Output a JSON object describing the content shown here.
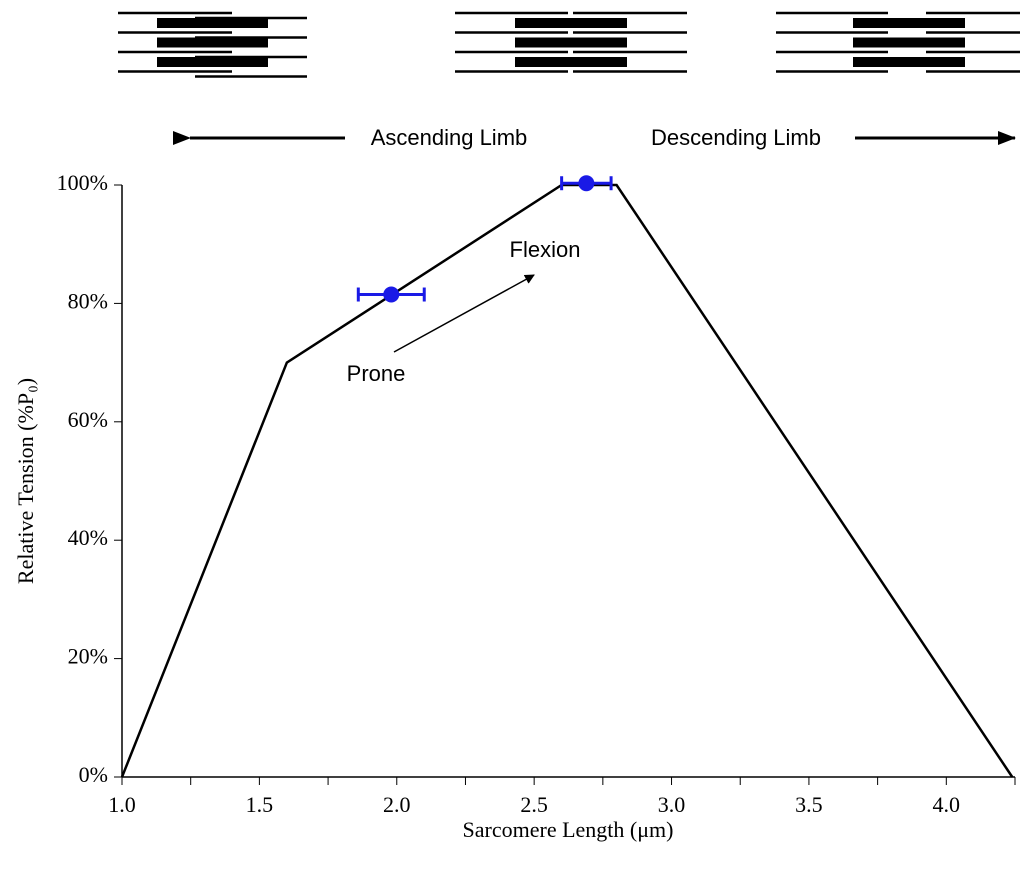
{
  "chart_data": {
    "type": "line",
    "xlabel": "Sarcomere Length (μm)",
    "ylabel": "Relative Tension (%P₀)",
    "xlim": [
      1.0,
      4.25
    ],
    "ylim": [
      0,
      100
    ],
    "xticks": [
      {
        "value": 1,
        "label": "1.0"
      },
      {
        "value": 1.5,
        "label": "1.5"
      },
      {
        "value": 2,
        "label": "2.0"
      },
      {
        "value": 2.5,
        "label": "2.5"
      },
      {
        "value": 3,
        "label": "3.0"
      },
      {
        "value": 3.5,
        "label": "3.5"
      },
      {
        "value": 4,
        "label": "4.0"
      }
    ],
    "xminorticks": [
      1.25,
      1.75,
      2.25,
      2.75,
      3.25,
      3.75,
      4.25
    ],
    "yticks": [
      {
        "value": 0,
        "label": "0%"
      },
      {
        "value": 20,
        "label": "20%"
      },
      {
        "value": 40,
        "label": "40%"
      },
      {
        "value": 60,
        "label": "60%"
      },
      {
        "value": 80,
        "label": "80%"
      },
      {
        "value": 100,
        "label": "100%"
      }
    ],
    "series": [
      {
        "color": "#000000",
        "x": [
          1.0,
          1.6,
          2.6,
          2.8,
          4.24
        ],
        "values": [
          0,
          70,
          100,
          100,
          0
        ]
      }
    ],
    "points": {
      "color": "#1a1ae6",
      "x": [
        1.98,
        2.69
      ],
      "values": [
        81.5,
        100.3
      ],
      "xerr": [
        0.12,
        0.09
      ]
    },
    "annotations": {
      "prone": "Prone",
      "flexion": "Flexion",
      "ascending": "Ascending  Limb",
      "descending": "Descending Limb"
    }
  }
}
